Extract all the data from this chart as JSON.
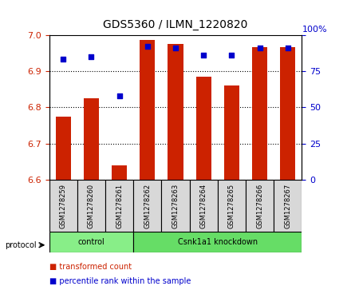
{
  "title": "GDS5360 / ILMN_1220820",
  "samples": [
    "GSM1278259",
    "GSM1278260",
    "GSM1278261",
    "GSM1278262",
    "GSM1278263",
    "GSM1278264",
    "GSM1278265",
    "GSM1278266",
    "GSM1278267"
  ],
  "transformed_counts": [
    6.775,
    6.825,
    6.64,
    6.985,
    6.975,
    6.885,
    6.86,
    6.965,
    6.965
  ],
  "percentile_ranks": [
    83,
    85,
    58,
    92,
    91,
    86,
    86,
    91,
    91
  ],
  "ylim_left": [
    6.6,
    7.0
  ],
  "ylim_right": [
    0,
    100
  ],
  "yticks_left": [
    6.6,
    6.7,
    6.8,
    6.9,
    7.0
  ],
  "yticks_right": [
    0,
    25,
    50,
    75,
    100
  ],
  "bar_color": "#cc2200",
  "dot_color": "#0000cc",
  "bar_bottom": 6.6,
  "groups": [
    {
      "label": "control",
      "start": 0,
      "end": 3,
      "color": "#88ee88"
    },
    {
      "label": "Csnk1a1 knockdown",
      "start": 3,
      "end": 9,
      "color": "#66dd66"
    }
  ],
  "protocol_label": "protocol",
  "legend_items": [
    {
      "label": "transformed count",
      "color": "#cc2200"
    },
    {
      "label": "percentile rank within the sample",
      "color": "#0000cc"
    }
  ],
  "grid_color": "#000000",
  "tick_label_color_left": "#cc2200",
  "tick_label_color_right": "#0000cc"
}
